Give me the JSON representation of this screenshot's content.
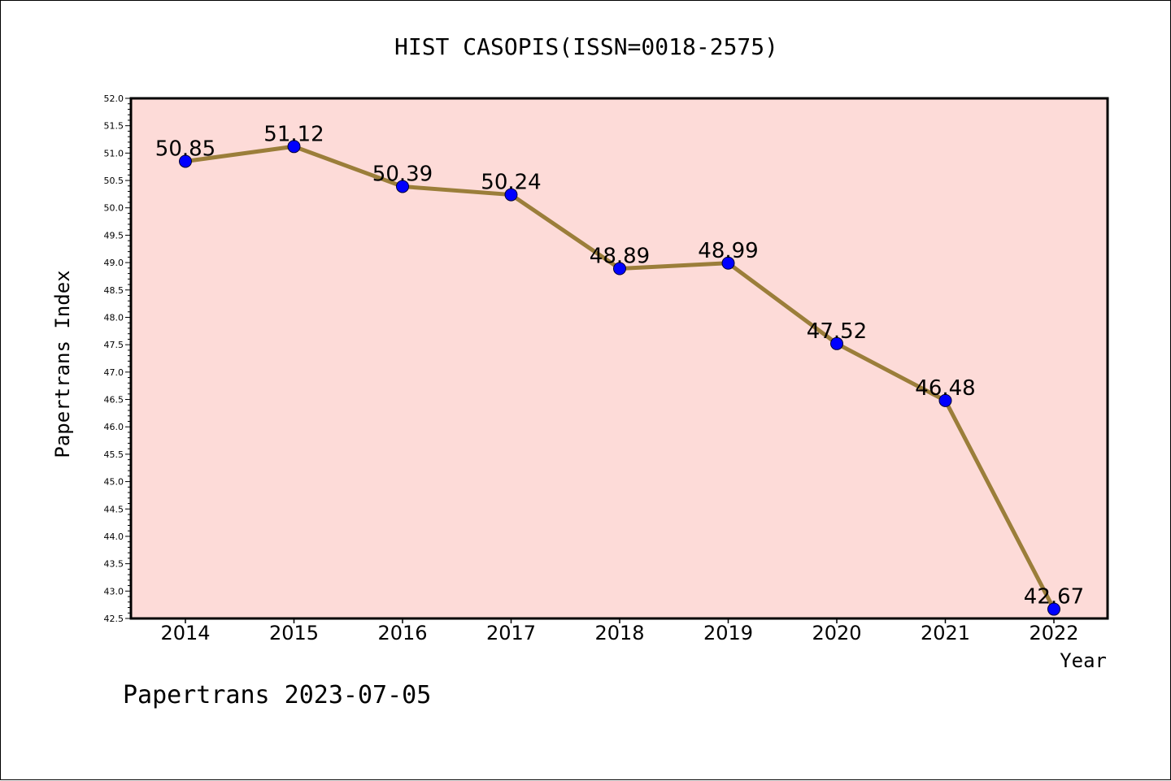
{
  "chart_data": {
    "type": "line",
    "title": "HIST CASOPIS(ISSN=0018-2575)",
    "xlabel": "Year",
    "ylabel": "Papertrans Index",
    "categories": [
      "2014",
      "2015",
      "2016",
      "2017",
      "2018",
      "2019",
      "2020",
      "2021",
      "2022"
    ],
    "series": [
      {
        "values": [
          50.85,
          51.12,
          50.39,
          50.24,
          48.89,
          48.99,
          47.52,
          46.48,
          42.67
        ],
        "data_labels": [
          "50.85",
          "51.12",
          "50.39",
          "50.24",
          "48.89",
          "48.99",
          "47.52",
          "46.48",
          "42.67"
        ],
        "line_color": "#9b7e3a",
        "marker_color": "#0000ff"
      }
    ],
    "ylim": [
      42.5,
      52.0
    ],
    "yticks": [
      "42.5",
      "43.0",
      "43.5",
      "44.0",
      "44.5",
      "45.0",
      "45.5",
      "46.0",
      "46.5",
      "47.0",
      "47.5",
      "48.0",
      "48.5",
      "49.0",
      "49.5",
      "50.0",
      "50.5",
      "51.0",
      "51.5",
      "52.0"
    ],
    "grid": false,
    "legend": "none",
    "plot_background": "#fddbd8"
  },
  "footer": {
    "text": "Papertrans 2023-07-05"
  }
}
